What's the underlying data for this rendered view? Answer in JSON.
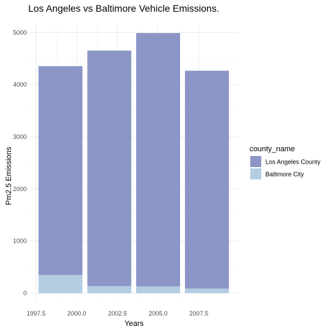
{
  "chart_data": {
    "type": "bar",
    "stacked": true,
    "title": "Los Angeles vs Baltimore Vehicle Emissions.",
    "xlabel": "Years",
    "ylabel": "Pm2.5 Emissions",
    "x": [
      1999,
      2002,
      2005,
      2008
    ],
    "xlim": [
      1997.1,
      2009.9
    ],
    "ylim": [
      -100,
      5150
    ],
    "xticks": [
      1997.5,
      2000.0,
      2002.5,
      2005.0,
      2007.5
    ],
    "xtick_labels": [
      "1997.5",
      "2000.0",
      "2002.5",
      "2005.0",
      "2007.5"
    ],
    "yticks": [
      0,
      1000,
      2000,
      3000,
      4000,
      5000
    ],
    "ytick_labels": [
      "0",
      "1000",
      "2000",
      "3000",
      "4000",
      "5000"
    ],
    "bar_width_years": 2.7,
    "grid": true,
    "legend": {
      "title": "county_name",
      "position": "right"
    },
    "series": [
      {
        "name": "Los Angeles County",
        "color": "#8c96c6",
        "values": [
          4010,
          4520,
          4860,
          4180
        ]
      },
      {
        "name": "Baltimore City",
        "color": "#b3cde3",
        "values": [
          346,
          134,
          130,
          88
        ]
      }
    ]
  }
}
